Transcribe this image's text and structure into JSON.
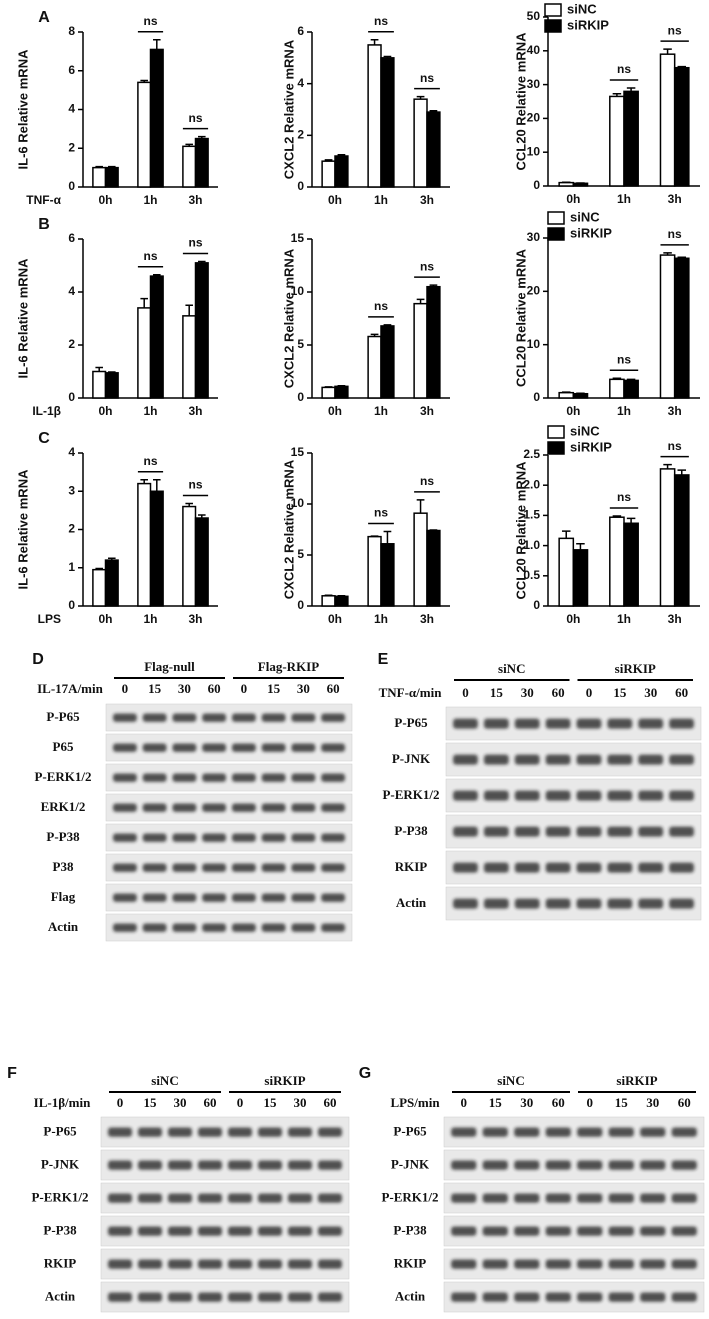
{
  "chart_data": [
    {
      "type": "bar",
      "panel": "A",
      "x_label": "TNF-α",
      "y_label": "IL-6 Relative mRNA",
      "categories": [
        "0h",
        "1h",
        "3h"
      ],
      "series": [
        {
          "color": "#ffffff",
          "values": [
            1.0,
            5.4,
            2.1
          ],
          "errors": [
            0.05,
            0.1,
            0.1
          ]
        },
        {
          "color": "#000000",
          "values": [
            1.0,
            7.1,
            2.5
          ],
          "errors": [
            0.05,
            0.5,
            0.1
          ]
        }
      ],
      "annotations": [
        null,
        "ns",
        "ns"
      ],
      "ylim": [
        0,
        8
      ],
      "yticks": [
        0,
        2,
        4,
        6,
        8
      ]
    },
    {
      "type": "bar",
      "y_label": "CXCL2 Relative mRNA",
      "categories": [
        "0h",
        "1h",
        "3h"
      ],
      "series": [
        {
          "color": "#ffffff",
          "values": [
            1.0,
            5.5,
            3.4
          ],
          "errors": [
            0.05,
            0.2,
            0.1
          ]
        },
        {
          "color": "#000000",
          "values": [
            1.2,
            5.0,
            2.9
          ],
          "errors": [
            0.05,
            0.05,
            0.05
          ]
        }
      ],
      "annotations": [
        null,
        "ns",
        "ns"
      ],
      "ylim": [
        0,
        6
      ],
      "yticks": [
        0,
        2,
        4,
        6
      ]
    },
    {
      "type": "bar",
      "y_label": "CCL20 Relative mRNA",
      "categories": [
        "0h",
        "1h",
        "3h"
      ],
      "legend": "top-left",
      "series": [
        {
          "name": "siNC",
          "color": "#ffffff",
          "values": [
            1.0,
            26.5,
            39
          ],
          "errors": [
            0.1,
            0.8,
            1.5
          ]
        },
        {
          "name": "siRKIP",
          "color": "#000000",
          "values": [
            0.8,
            28,
            35
          ],
          "errors": [
            0.1,
            1,
            0.3
          ]
        }
      ],
      "annotations": [
        null,
        "ns",
        "ns"
      ],
      "ylim": [
        0,
        50
      ],
      "yticks": [
        0,
        10,
        20,
        30,
        40,
        50
      ]
    },
    {
      "type": "bar",
      "panel": "B",
      "x_label": "IL-1β",
      "y_label": "IL-6 Relative mRNA",
      "categories": [
        "0h",
        "1h",
        "3h"
      ],
      "series": [
        {
          "color": "#ffffff",
          "values": [
            1.0,
            3.4,
            3.1
          ],
          "errors": [
            0.15,
            0.35,
            0.4
          ]
        },
        {
          "color": "#000000",
          "values": [
            0.95,
            4.6,
            5.1
          ],
          "errors": [
            0.03,
            0.05,
            0.05
          ]
        }
      ],
      "annotations": [
        null,
        "ns",
        "ns"
      ],
      "ylim": [
        0,
        6
      ],
      "yticks": [
        0,
        2,
        4,
        6
      ]
    },
    {
      "type": "bar",
      "y_label": "CXCL2 Relative mRNA",
      "categories": [
        "0h",
        "1h",
        "3h"
      ],
      "series": [
        {
          "color": "#ffffff",
          "values": [
            1.0,
            5.8,
            8.9
          ],
          "errors": [
            0.05,
            0.2,
            0.4
          ]
        },
        {
          "color": "#000000",
          "values": [
            1.1,
            6.8,
            10.5
          ],
          "errors": [
            0.05,
            0.1,
            0.15
          ]
        }
      ],
      "annotations": [
        null,
        "ns",
        "ns"
      ],
      "ylim": [
        0,
        15
      ],
      "yticks": [
        0,
        5,
        10,
        15
      ]
    },
    {
      "type": "bar",
      "y_label": "CCL20 Relative mRNA",
      "categories": [
        "0h",
        "1h",
        "3h"
      ],
      "legend": "top-left",
      "series": [
        {
          "name": "siNC",
          "color": "#ffffff",
          "values": [
            1.0,
            3.5,
            26.8
          ],
          "errors": [
            0.1,
            0.2,
            0.4
          ]
        },
        {
          "name": "siRKIP",
          "color": "#000000",
          "values": [
            0.8,
            3.3,
            26.2
          ],
          "errors": [
            0.1,
            0.2,
            0.2
          ]
        }
      ],
      "annotations": [
        null,
        "ns",
        "ns"
      ],
      "ylim": [
        0,
        30
      ],
      "yticks": [
        0,
        10,
        20,
        30
      ]
    },
    {
      "type": "bar",
      "panel": "C",
      "x_label": "LPS",
      "y_label": "IL-6 Relative mRNA",
      "categories": [
        "0h",
        "1h",
        "3h"
      ],
      "series": [
        {
          "color": "#ffffff",
          "values": [
            0.95,
            3.2,
            2.6
          ],
          "errors": [
            0.03,
            0.1,
            0.08
          ]
        },
        {
          "color": "#000000",
          "values": [
            1.2,
            3.0,
            2.3
          ],
          "errors": [
            0.05,
            0.3,
            0.08
          ]
        }
      ],
      "annotations": [
        null,
        "ns",
        "ns"
      ],
      "ylim": [
        0,
        4
      ],
      "yticks": [
        0,
        1,
        2,
        3,
        4
      ]
    },
    {
      "type": "bar",
      "y_label": "CXCL2 Relative mRNA",
      "categories": [
        "0h",
        "1h",
        "3h"
      ],
      "series": [
        {
          "color": "#ffffff",
          "values": [
            1.0,
            6.8,
            9.1
          ],
          "errors": [
            0.05,
            0.05,
            1.3
          ]
        },
        {
          "color": "#000000",
          "values": [
            0.95,
            6.1,
            7.4
          ],
          "errors": [
            0.05,
            1.2,
            0.05
          ]
        }
      ],
      "annotations": [
        null,
        "ns",
        "ns"
      ],
      "ylim": [
        0,
        15
      ],
      "yticks": [
        0,
        5,
        10,
        15
      ]
    },
    {
      "type": "bar",
      "y_label": "CCL20 Relative mRNA",
      "categories": [
        "0h",
        "1h",
        "3h"
      ],
      "legend": "top-left",
      "series": [
        {
          "name": "siNC",
          "color": "#ffffff",
          "values": [
            1.12,
            1.47,
            2.27
          ],
          "errors": [
            0.12,
            0.02,
            0.07
          ]
        },
        {
          "name": "siRKIP",
          "color": "#000000",
          "values": [
            0.93,
            1.37,
            2.17
          ],
          "errors": [
            0.1,
            0.08,
            0.08
          ]
        }
      ],
      "annotations": [
        null,
        "ns",
        "ns"
      ],
      "ylim": [
        0,
        2.5
      ],
      "yticks": [
        0,
        0.5,
        {
          "value": 1,
          "label": "1.0"
        },
        1.5,
        {
          "value": 2,
          "label": "2.0"
        },
        2.5
      ]
    }
  ],
  "blots": [
    {
      "label": "D",
      "groups": [
        "Flag-null",
        "Flag-RKIP"
      ],
      "treatment": "IL-17A/min",
      "times": [
        "0",
        "15",
        "30",
        "60",
        "0",
        "15",
        "30",
        "60"
      ],
      "rows": [
        "P-P65",
        "P65",
        "P-ERK1/2",
        "ERK1/2",
        "P-P38",
        "P38",
        "Flag",
        "Actin"
      ]
    },
    {
      "label": "E",
      "groups": [
        "siNC",
        "siRKIP"
      ],
      "treatment": "TNF-α/min",
      "times": [
        "0",
        "15",
        "30",
        "60",
        "0",
        "15",
        "30",
        "60"
      ],
      "rows": [
        "P-P65",
        "P-JNK",
        "P-ERK1/2",
        "P-P38",
        "RKIP",
        "Actin"
      ]
    },
    {
      "label": "F",
      "groups": [
        "siNC",
        "siRKIP"
      ],
      "treatment": "IL-1β/min",
      "times": [
        "0",
        "15",
        "30",
        "60",
        "0",
        "15",
        "30",
        "60"
      ],
      "rows": [
        "P-P65",
        "P-JNK",
        "P-ERK1/2",
        "P-P38",
        "RKIP",
        "Actin"
      ]
    },
    {
      "label": "G",
      "groups": [
        "siNC",
        "siRKIP"
      ],
      "treatment": "LPS/min",
      "times": [
        "0",
        "15",
        "30",
        "60",
        "0",
        "15",
        "30",
        "60"
      ],
      "rows": [
        "P-P65",
        "P-JNK",
        "P-ERK1/2",
        "P-P38",
        "RKIP",
        "Actin"
      ]
    }
  ]
}
